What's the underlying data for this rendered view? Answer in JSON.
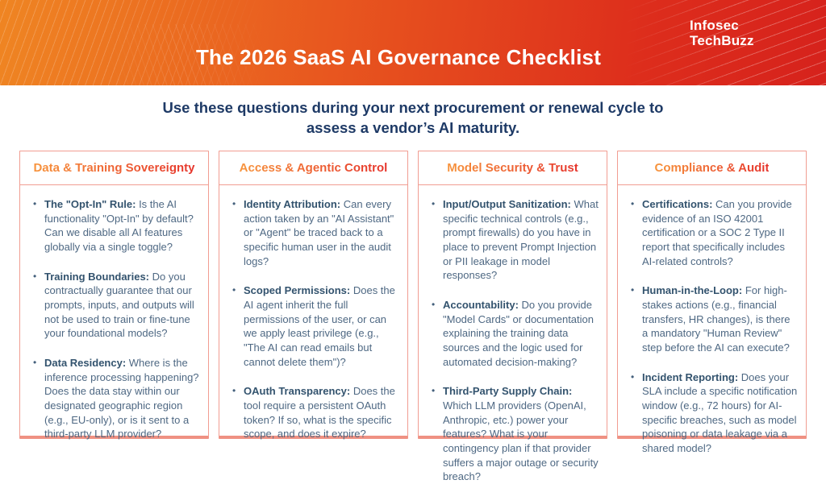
{
  "brand": {
    "line1": "Infosec",
    "line2": "TechBuzz"
  },
  "header": {
    "title": "The 2026 SaaS AI Governance Checklist"
  },
  "intro": {
    "line1": "Use these questions during your next procurement or renewal cycle to",
    "line2": "assess a vendor’s AI maturity."
  },
  "colors": {
    "banner_gradient_start": "#ef8522",
    "banner_gradient_end": "#d6221c",
    "card_title_gradient_start": "#f7943c",
    "card_title_gradient_end": "#e6342c",
    "card_border": "#f19d92",
    "subtitle_text": "#1e3a66",
    "body_text": "#4e6883",
    "lead_text": "#33536e"
  },
  "columns": [
    {
      "title": "Data & Training Sovereignty",
      "items": [
        {
          "label": "The \"Opt-In\" Rule:",
          "text": "Is the AI functionality \"Opt-In\" by default? Can we disable all AI features globally via a single toggle?"
        },
        {
          "label": "Training Boundaries:",
          "text": "Do you contractually guarantee that our prompts, inputs, and outputs will not be used to train or fine-tune your foundational models?"
        },
        {
          "label": "Data Residency:",
          "text": "Where is the inference processing happening? Does the data stay within our designated geographic region (e.g., EU-only), or is it sent to a third-party LLM provider?"
        }
      ]
    },
    {
      "title": "Access & Agentic Control",
      "items": [
        {
          "label": "Identity Attribution:",
          "text": "Can every action taken by an \"AI Assistant\" or \"Agent\" be traced back to a specific human user in the audit logs?"
        },
        {
          "label": "Scoped Permissions:",
          "text": "Does the AI agent inherit the full permissions of the user, or can we apply least privilege (e.g., \"The AI can read emails but cannot delete them\")?"
        },
        {
          "label": "OAuth Transparency:",
          "text": "Does the tool require a persistent OAuth token? If so, what is the specific scope, and does it expire?"
        }
      ]
    },
    {
      "title": "Model Security & Trust",
      "items": [
        {
          "label": "Input/Output Sanitization:",
          "text": "What specific technical controls (e.g., prompt firewalls) do you have in place to prevent Prompt Injection or PII leakage in model responses?"
        },
        {
          "label": "Accountability:",
          "text": "Do you provide \"Model Cards\" or documentation explaining the training data sources and the logic used for automated decision-making?"
        },
        {
          "label": "Third-Party Supply Chain:",
          "text": "Which LLM providers (OpenAI, Anthropic, etc.) power your features? What is your contingency plan if that provider suffers a major outage or security breach?"
        }
      ]
    },
    {
      "title": "Compliance & Audit",
      "items": [
        {
          "label": "Certifications:",
          "text": "Can you provide evidence of an ISO 42001 certification or a SOC 2 Type II report that specifically includes AI-related controls?"
        },
        {
          "label": "Human-in-the-Loop:",
          "text": "For high-stakes actions (e.g., financial transfers, HR changes), is there a mandatory \"Human Review\" step before the AI can execute?"
        },
        {
          "label": "Incident Reporting:",
          "text": "Does your SLA include a specific notification window (e.g., 72 hours) for AI-specific breaches, such as model poisoning or data leakage via a shared model?"
        }
      ]
    }
  ]
}
